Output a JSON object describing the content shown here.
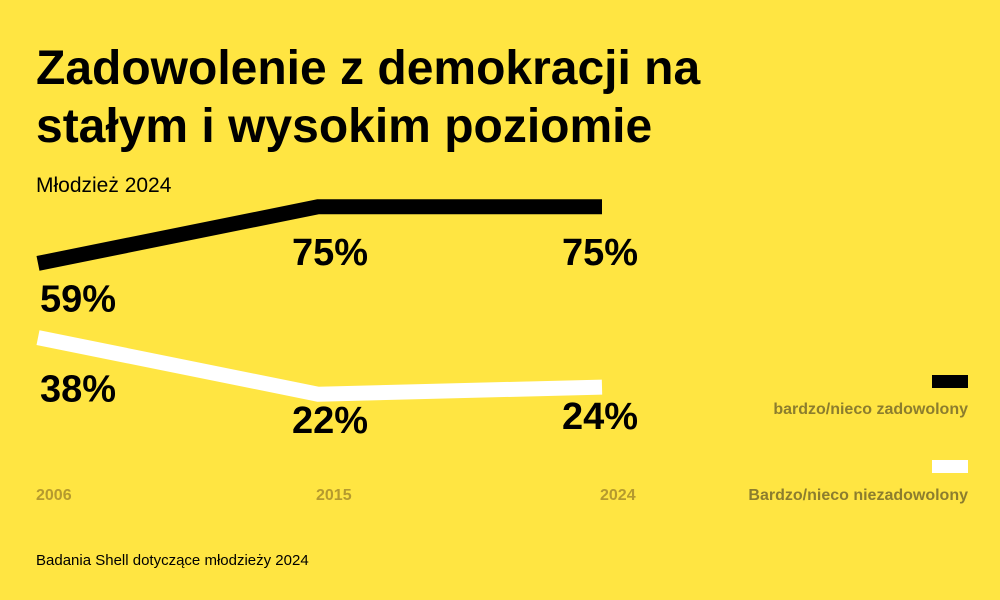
{
  "title": "Zadowolenie z demokracji na stałym i wysokim poziomie",
  "subtitle": "Młodzież 2024",
  "source": "Badania Shell dotyczące młodzieży 2024",
  "colors": {
    "background": "#FFE542",
    "satisfied": "#000000",
    "dissatisfied": "#FFFFFF",
    "tick": "#B59A2E",
    "legend_text": "#8C7D2E"
  },
  "chart_data": {
    "type": "line",
    "x": [
      "2006",
      "2015",
      "2024"
    ],
    "series": [
      {
        "name": "bardzo/nieco zadowolony",
        "values": [
          59,
          75,
          75
        ],
        "labels": [
          "59%",
          "75%",
          "75%"
        ],
        "color": "#000000"
      },
      {
        "name": "Bardzo/nieco niezadowolony",
        "values": [
          38,
          22,
          24
        ],
        "labels": [
          "38%",
          "22%",
          "24%"
        ],
        "color": "#FFFFFF"
      }
    ],
    "ylim": [
      0,
      100
    ],
    "grid": false,
    "legend_placement": "right"
  }
}
